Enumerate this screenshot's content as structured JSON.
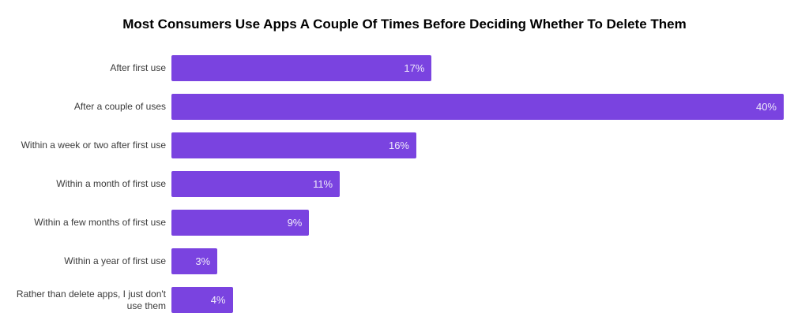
{
  "page": {
    "background_color": "#ffffff"
  },
  "chart_data": {
    "type": "bar",
    "orientation": "horizontal",
    "title": "Most Consumers Use Apps A Couple Of Times Before Deciding Whether To Delete Them",
    "categories": [
      "After first use",
      "After a couple of uses",
      "Within a week or two after first use",
      "Within a month of first use",
      "Within a few months of first use",
      "Within a year of first use",
      "Rather than delete apps, I just don't use them"
    ],
    "values": [
      17,
      40,
      16,
      11,
      9,
      3,
      4
    ],
    "value_labels": [
      "17%",
      "40%",
      "16%",
      "11%",
      "9%",
      "3%",
      "4%"
    ],
    "xlim": [
      0,
      40
    ],
    "xlabel": "",
    "ylabel": "",
    "grid": false,
    "legend": false,
    "axes_visible": false,
    "value_label_position": "inside-end",
    "bar_color": "#7a43e0",
    "value_label_color": "#efeafb",
    "category_label_color": "#3b3b3b",
    "title_color": "#000000"
  }
}
